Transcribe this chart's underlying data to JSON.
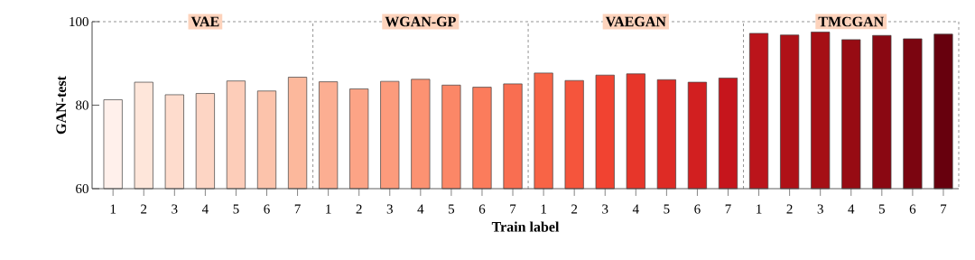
{
  "chart_data": {
    "type": "bar",
    "xlabel": "Train label",
    "ylabel": "GAN-test",
    "categories": [
      "1",
      "2",
      "3",
      "4",
      "5",
      "6",
      "7",
      "1",
      "2",
      "3",
      "4",
      "5",
      "6",
      "7",
      "1",
      "2",
      "3",
      "4",
      "5",
      "6",
      "7",
      "1",
      "2",
      "3",
      "4",
      "5",
      "6",
      "7"
    ],
    "values": [
      81.3,
      85.5,
      82.5,
      82.8,
      85.8,
      83.4,
      86.7,
      85.6,
      83.9,
      85.7,
      86.2,
      84.8,
      84.3,
      85.1,
      87.7,
      85.9,
      87.2,
      87.5,
      86.1,
      85.5,
      86.5,
      97.2,
      96.8,
      97.5,
      95.7,
      96.7,
      95.9,
      97.0
    ],
    "colors": [
      "#fff0eb",
      "#fee6da",
      "#fedccd",
      "#fdd5c4",
      "#fdcdb9",
      "#fcc3ab",
      "#fcb89c",
      "#fcae92",
      "#fca486",
      "#fc9b7c",
      "#fc9272",
      "#fb8767",
      "#fb7c5c",
      "#f96e51",
      "#f86446",
      "#f5553c",
      "#f14331",
      "#e7362a",
      "#de2b25",
      "#d21f20",
      "#c6151c",
      "#bb141b",
      "#af1117",
      "#a50f15",
      "#970b13",
      "#8a0812",
      "#7b0510",
      "#67000d"
    ],
    "ylim": [
      60,
      100
    ],
    "yticks": [
      60,
      80,
      100
    ],
    "annotations": [
      "VAE",
      "WGAN-GP",
      "VAEGAN",
      "TMCGAN"
    ],
    "grid": false
  }
}
